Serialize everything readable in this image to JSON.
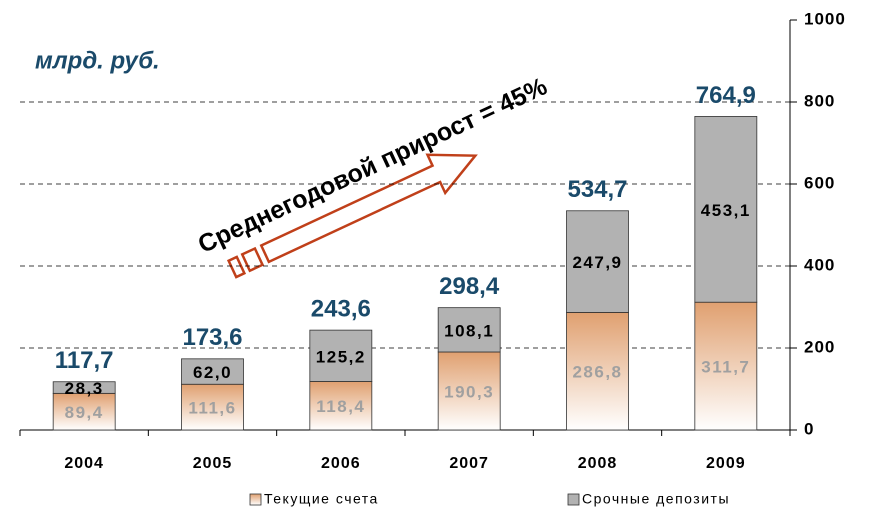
{
  "chart_data": {
    "type": "stacked_bar",
    "subtitle": "млрд. руб.",
    "annotation": "Среднегодовой прирост = 45%",
    "categories": [
      "2004",
      "2005",
      "2006",
      "2007",
      "2008",
      "2009"
    ],
    "series": [
      {
        "name": "Текущие счета",
        "color": "#e0a070",
        "values": [
          89.4,
          111.6,
          118.4,
          190.3,
          286.8,
          311.7
        ],
        "value_labels": [
          "89,4",
          "111,6",
          "118,4",
          "190,3",
          "286,8",
          "311,7"
        ]
      },
      {
        "name": "Срочные депозиты",
        "color": "#b2b2b2",
        "values": [
          28.3,
          62.0,
          125.2,
          108.1,
          247.9,
          453.1
        ],
        "value_labels": [
          "28,3",
          "62,0",
          "125,2",
          "108,1",
          "247,9",
          "453,1"
        ]
      }
    ],
    "totals": [
      117.7,
      173.6,
      243.6,
      298.4,
      534.7,
      764.9
    ],
    "total_labels": [
      "117,7",
      "173,6",
      "243,6",
      "298,4",
      "534,7",
      "764,9"
    ],
    "ylim": [
      0,
      1000
    ],
    "yticks": [
      0,
      200,
      400,
      600,
      800,
      1000
    ],
    "grid": true
  }
}
